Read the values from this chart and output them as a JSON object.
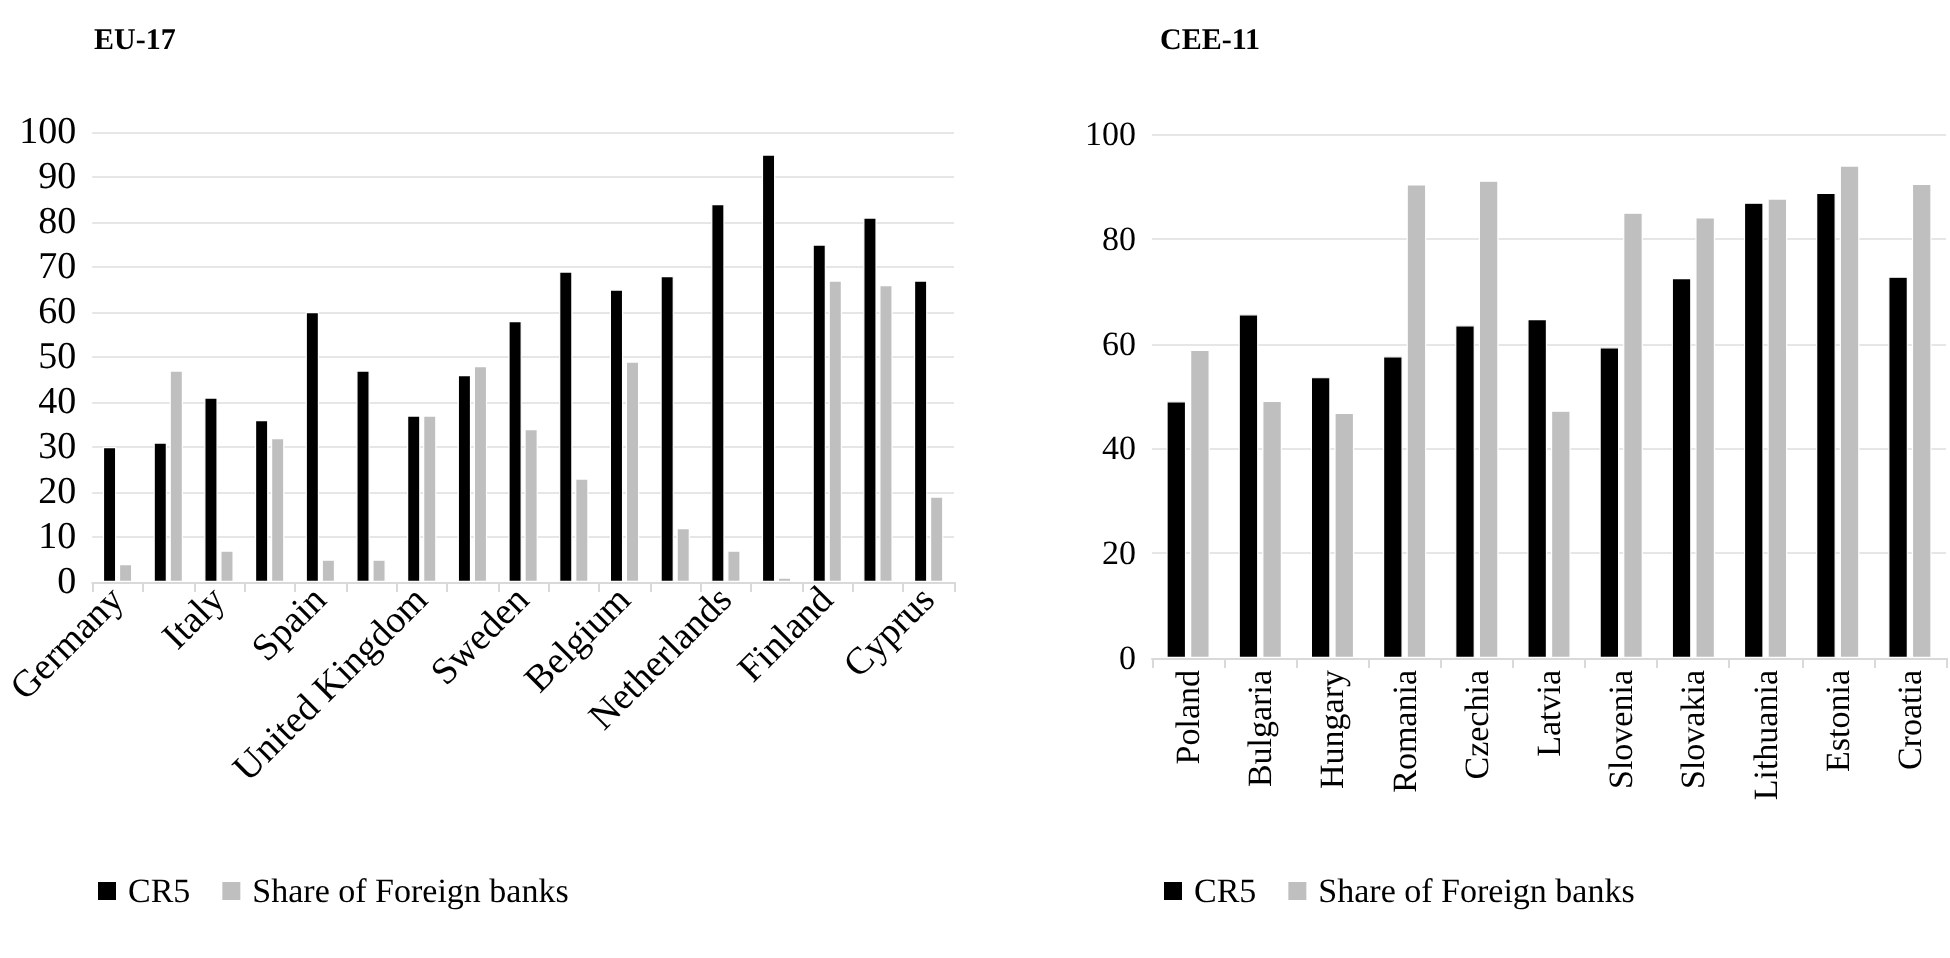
{
  "chart_data": [
    {
      "type": "bar",
      "title": "EU-17",
      "categories": [
        "Germany",
        null,
        "Italy",
        null,
        "Spain",
        null,
        "United Kingdom",
        null,
        "Sweden",
        null,
        "Belgium",
        null,
        "Netherlands",
        null,
        "Finland",
        null,
        "Cyprus"
      ],
      "series": [
        {
          "name": "CR5",
          "color": "#000000",
          "values": [
            30,
            31,
            41,
            36,
            60,
            47,
            37,
            46,
            58,
            69,
            65,
            68,
            84,
            95,
            75,
            81,
            67
          ]
        },
        {
          "name": "Share of Foreign banks",
          "color": "#bfbfbf",
          "values": [
            4,
            47,
            7,
            32,
            5,
            5,
            37,
            48,
            34,
            23,
            49,
            12,
            7,
            1,
            67,
            66,
            19
          ]
        }
      ],
      "ylim": [
        0,
        100
      ],
      "yticks": [
        0,
        10,
        20,
        30,
        40,
        50,
        60,
        70,
        80,
        90,
        100
      ],
      "grid": "y",
      "legend": "bottom"
    },
    {
      "type": "bar",
      "title": "CEE-11",
      "categories": [
        "Poland",
        "Bulgaria",
        "Hungary",
        "Romania",
        "Czechia",
        "Latvia",
        "Slovenia",
        "Slovakia",
        "Lithuania",
        "Estonia",
        "Croatia"
      ],
      "series": [
        {
          "name": "CR5",
          "color": "#000000",
          "values": [
            49,
            65.6,
            53.6,
            57.6,
            63.5,
            64.7,
            59.3,
            72.5,
            86.9,
            88.8,
            72.8
          ]
        },
        {
          "name": "Share of Foreign banks",
          "color": "#bfbfbf",
          "values": [
            58.8,
            49.1,
            46.8,
            90.4,
            91.1,
            47.2,
            85,
            84.1,
            87.7,
            94,
            90.5
          ]
        }
      ],
      "ylim": [
        0,
        100
      ],
      "yticks": [
        0,
        20,
        40,
        60,
        80,
        100
      ],
      "grid": "y",
      "legend": "bottom"
    }
  ]
}
